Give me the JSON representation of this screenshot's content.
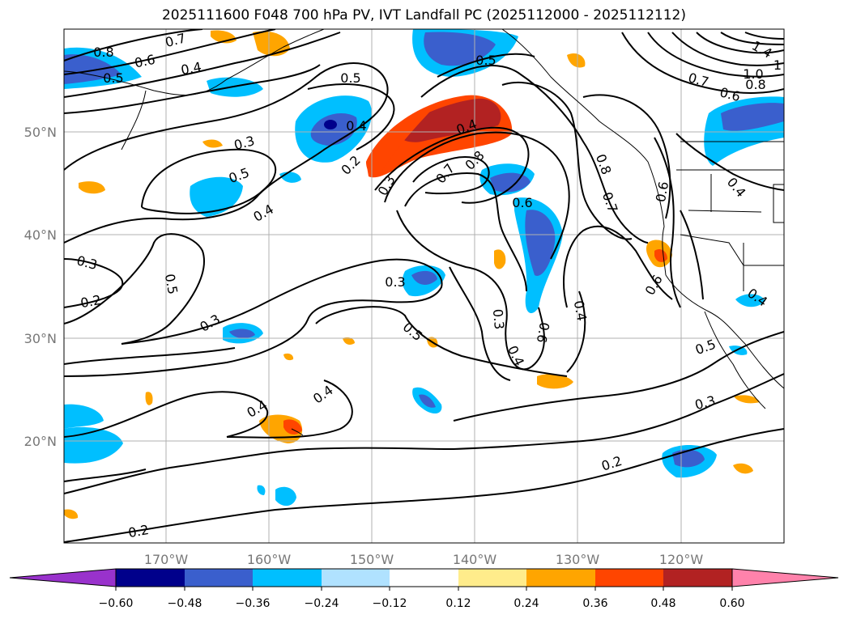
{
  "title": "2025111600 F048 700 hPa PV, IVT Landfall PC (2025112000 - 2025112112)",
  "map": {
    "latitude_ticks": [
      "50°N",
      "40°N",
      "30°N",
      "20°N"
    ],
    "longitude_ticks": [
      "170°W",
      "160°W",
      "150°W",
      "140°W",
      "130°W",
      "120°W"
    ],
    "contour_labels": [
      "0.8",
      "0.7",
      "0.6",
      "0.5",
      "0.4",
      "0.5",
      "0.4",
      "0.3",
      "0.5",
      "0.4",
      "0.2",
      "0.3",
      "0.7",
      "0.8",
      "0.4",
      "0.5",
      "0.8",
      "0.7",
      "0.6",
      "0.7",
      "0.6",
      "0.8",
      "1.0",
      "1",
      "1.4",
      "0.4",
      "0.6",
      "0.3",
      "0.2",
      "0.5",
      "0.3",
      "0.3",
      "0.5",
      "0.3",
      "0.4",
      "0.6",
      "0.4",
      "0.6",
      "0.4",
      "0.5",
      "0.4",
      "0.4",
      "0.3",
      "0.2",
      "0.2"
    ],
    "colors": {
      "contour": "#000000",
      "grid": "#b0b0b0",
      "coast": "#000000"
    }
  },
  "colorbar": {
    "tick_labels": [
      "−0.60",
      "−0.48",
      "−0.36",
      "−0.24",
      "−0.12",
      "0.12",
      "0.24",
      "0.36",
      "0.48",
      "0.60"
    ],
    "colors": [
      "#9932cc",
      "#00008b",
      "#3a5fcd",
      "#00bfff",
      "#b0e2ff",
      "#ffffff",
      "#ffec8b",
      "#ffa500",
      "#ff4500",
      "#b22222",
      "#ff82ab"
    ]
  }
}
